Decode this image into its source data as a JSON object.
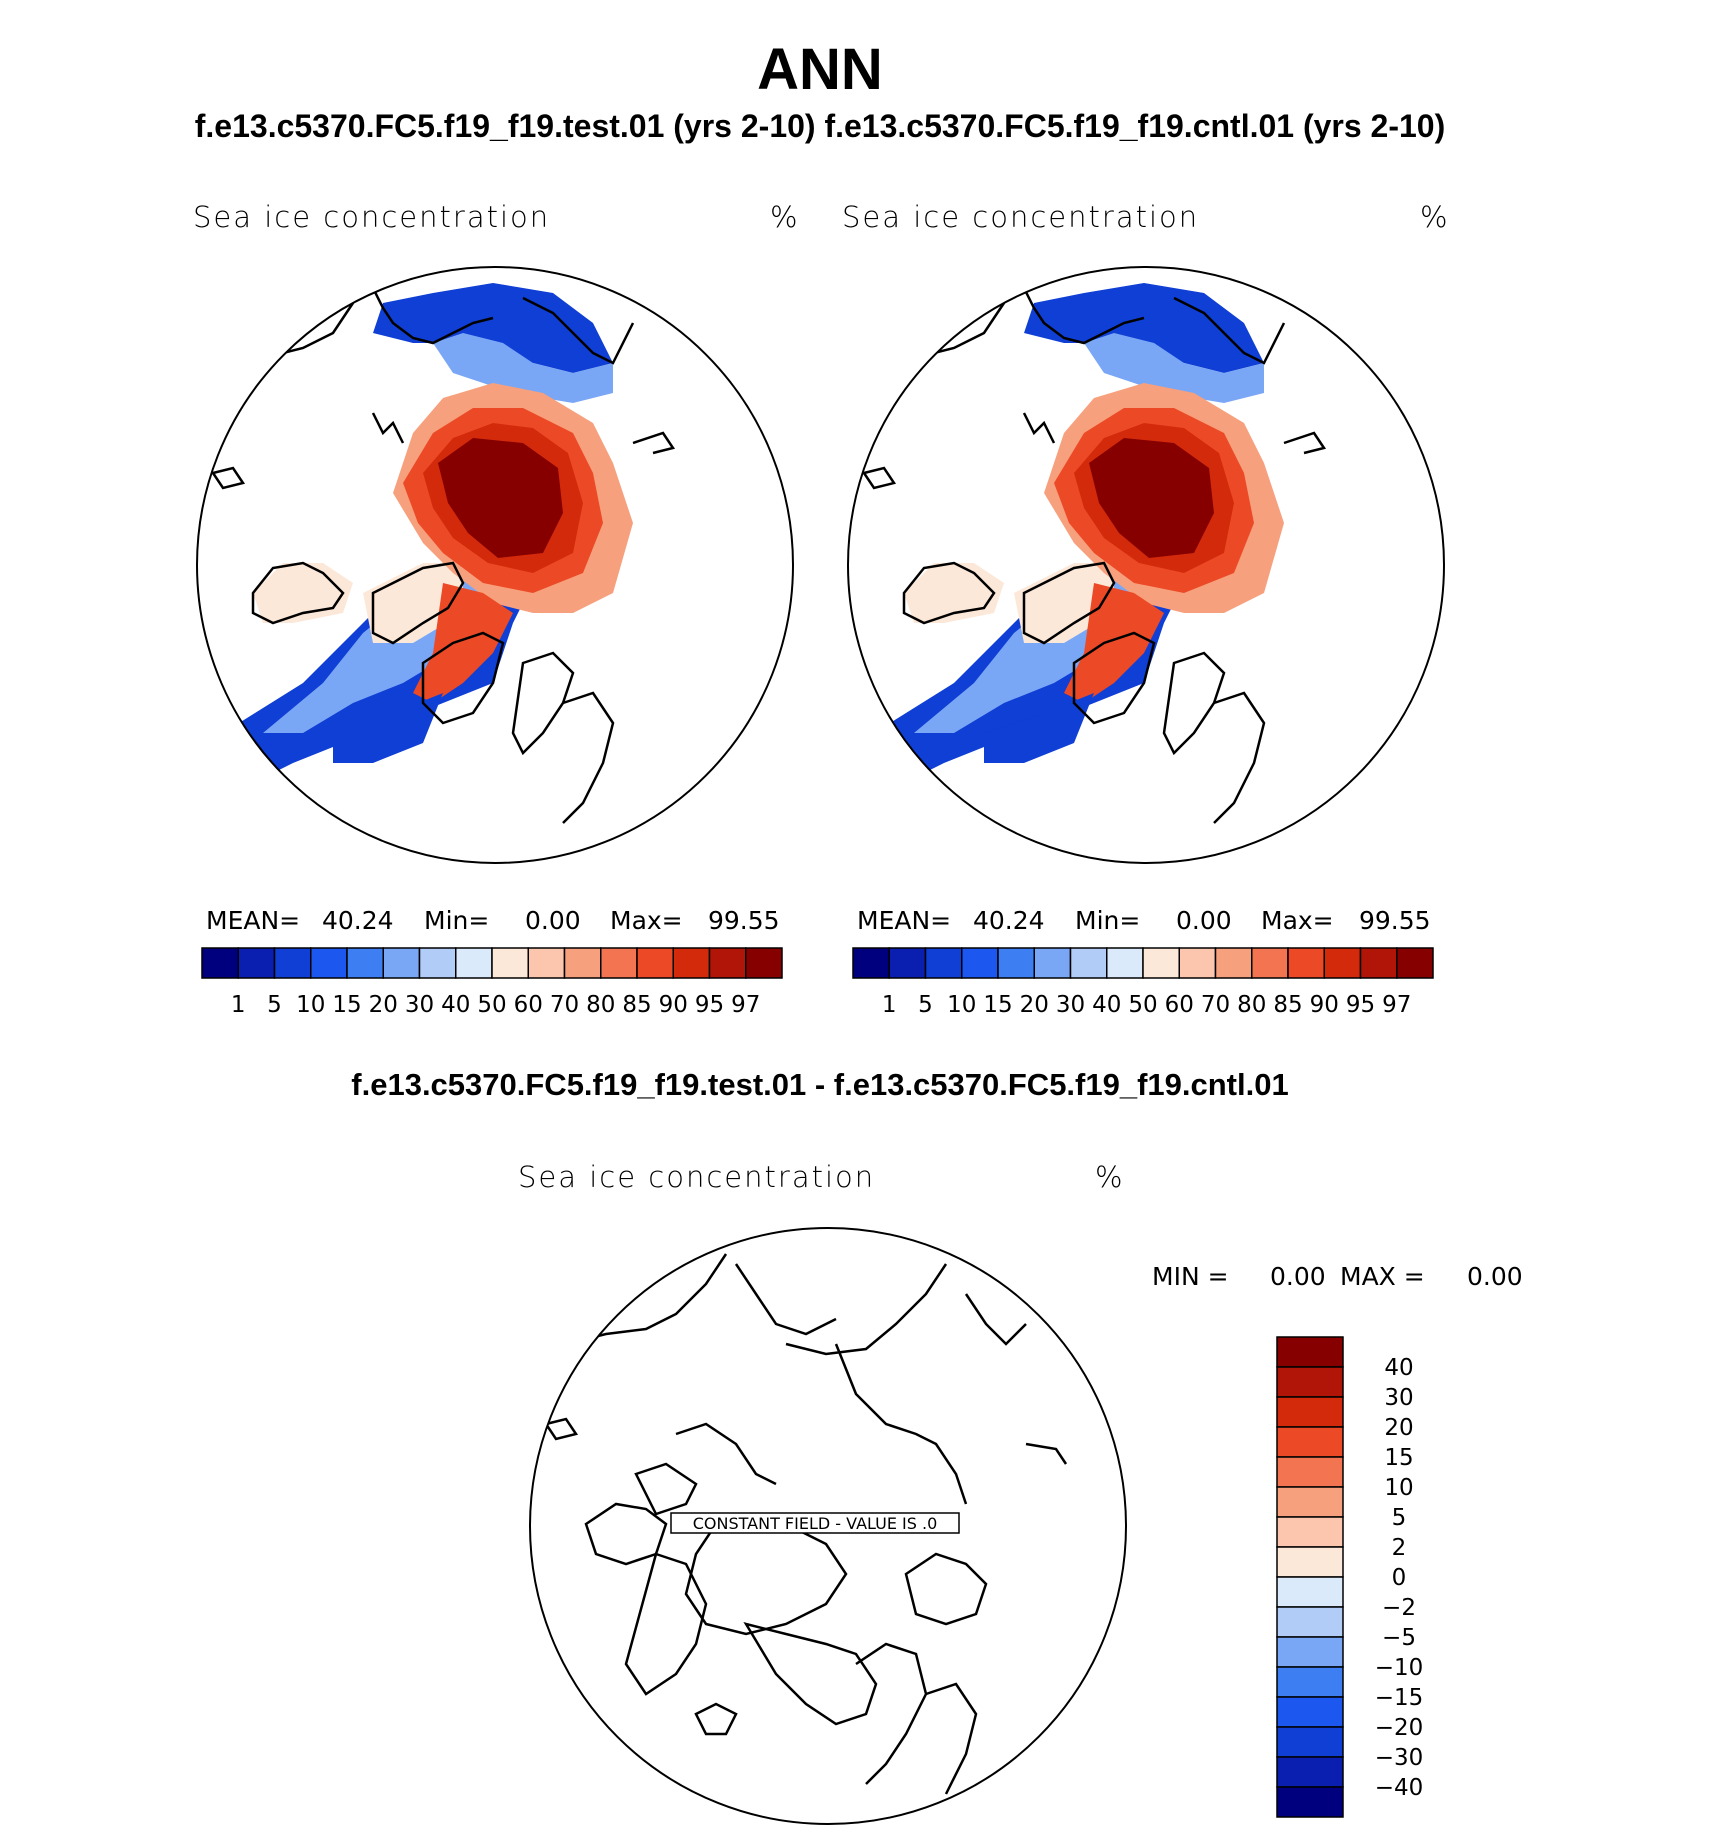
{
  "header": {
    "title": "ANN",
    "subtitle": "f.e13.c5370.FC5.f19_f19.test.01 (yrs 2-10) f.e13.c5370.FC5.f19_f19.cntl.01 (yrs 2-10)",
    "diff_title": "f.e13.c5370.FC5.f19_f19.test.01 - f.e13.c5370.FC5.f19_f19.cntl.01"
  },
  "panels": [
    {
      "variable": "Sea ice concentration",
      "units": "%",
      "mean_label": "MEAN=",
      "mean_value": "40.24",
      "min_label": "Min=",
      "min_value": "0.00",
      "max_label": "Max=",
      "max_value": "99.55"
    },
    {
      "variable": "Sea ice concentration",
      "units": "%",
      "mean_label": "MEAN=",
      "mean_value": "40.24",
      "min_label": "Min=",
      "min_value": "0.00",
      "max_label": "Max=",
      "max_value": "99.55"
    }
  ],
  "diff_panel": {
    "variable": "Sea ice concentration",
    "units": "%",
    "min_label": "MIN =",
    "min_value": "0.00",
    "max_label": "MAX =",
    "max_value": "0.00",
    "annotation": "CONSTANT FIELD - VALUE IS .0"
  },
  "colorbar": {
    "colors": [
      "#00007f",
      "#0a1eb0",
      "#0f3fd4",
      "#1c58f0",
      "#3d7ef2",
      "#7aa7f5",
      "#b0ccf7",
      "#dbeafa",
      "#fce8d8",
      "#fbc6ad",
      "#f7a07d",
      "#f27450",
      "#ec4a26",
      "#d42a0c",
      "#b01508",
      "#870000"
    ],
    "ticks": [
      "1",
      "5",
      "10",
      "15",
      "20",
      "30",
      "40",
      "50",
      "60",
      "70",
      "80",
      "85",
      "90",
      "95",
      "97"
    ]
  },
  "diff_colorbar": {
    "colors": [
      "#870000",
      "#b01508",
      "#d42a0c",
      "#ec4a26",
      "#f27450",
      "#f7a07d",
      "#fbc6ad",
      "#fce8d8",
      "#dbeafa",
      "#b0ccf7",
      "#7aa7f5",
      "#3d7ef2",
      "#1c58f0",
      "#0f3fd4",
      "#0a1eb0",
      "#00007f"
    ],
    "ticks": [
      "40",
      "30",
      "20",
      "15",
      "10",
      "5",
      "2",
      "0",
      "−2",
      "−5",
      "−10",
      "−15",
      "−20",
      "−30",
      "−40"
    ]
  },
  "map_colors": {
    "low": "#0f3fd4",
    "mid_low": "#7aa7f5",
    "light": "#dbeafa",
    "cream": "#fce8d8",
    "peach": "#f7a07d",
    "orange": "#ec4a26",
    "red": "#d42a0c",
    "darkred": "#870000"
  }
}
